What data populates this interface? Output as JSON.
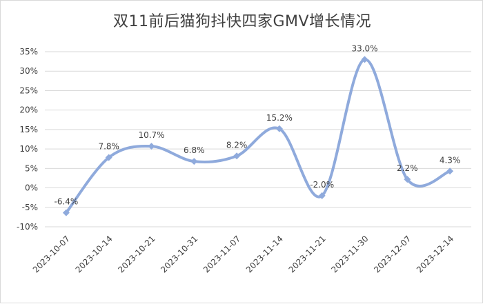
{
  "chart_data": {
    "type": "line",
    "title": "双11前后猫狗抖快四家GMV增长情况",
    "categories": [
      "2023-10-07",
      "2023-10-14",
      "2023-10-21",
      "2023-10-31",
      "2023-11-07",
      "2023-11-14",
      "2023-11-21",
      "2023-11-30",
      "2023-12-07",
      "2023-12-14"
    ],
    "values": [
      -6.4,
      7.8,
      10.7,
      6.8,
      8.2,
      15.2,
      -2.0,
      33.0,
      2.2,
      4.3
    ],
    "data_labels": [
      "-6.4%",
      "7.8%",
      "10.7%",
      "6.8%",
      "8.2%",
      "15.2%",
      "-2.0%",
      "33.0%",
      "2.2%",
      "4.3%"
    ],
    "y_ticks": [
      "35%",
      "30%",
      "25%",
      "20%",
      "15%",
      "10%",
      "5%",
      "0%",
      "-5%",
      "-10%"
    ],
    "y_tick_values": [
      35,
      30,
      25,
      20,
      15,
      10,
      5,
      0,
      -5,
      -10
    ],
    "ylim": [
      -10,
      35
    ],
    "xlabel": "",
    "ylabel": "",
    "grid": true,
    "smooth": true,
    "line_color": "#8faadc",
    "grid_color": "#d9d9d9"
  }
}
